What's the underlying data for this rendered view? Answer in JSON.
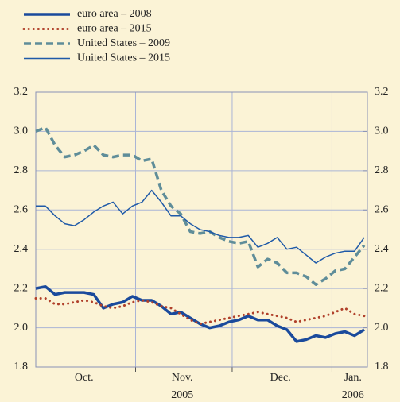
{
  "chart_data": {
    "type": "line",
    "x": [
      0,
      3,
      6,
      9,
      12,
      15,
      18,
      21,
      24,
      27,
      30,
      33,
      36,
      39,
      42,
      45,
      48,
      51,
      54,
      57,
      60,
      63,
      66,
      69,
      72,
      75,
      78,
      81,
      84,
      87,
      90,
      93,
      96,
      99,
      102
    ],
    "xlim": [
      0,
      103
    ],
    "xticks": [
      {
        "value": 15,
        "label": "Oct."
      },
      {
        "value": 45.5,
        "label": "Nov."
      },
      {
        "value": 76,
        "label": "Dec."
      },
      {
        "value": 98.5,
        "label": "Jan."
      }
    ],
    "year_labels": [
      {
        "value": 45.5,
        "label": "2005"
      },
      {
        "value": 98.5,
        "label": "2006"
      }
    ],
    "xgrid": [
      31,
      61,
      92
    ],
    "ylim": [
      1.8,
      3.2
    ],
    "yticks": [
      1.8,
      {
        "value": 2.0,
        "label": "2.0"
      },
      2.2,
      2.4,
      2.6,
      2.8,
      {
        "value": 3.0,
        "label": "3.0"
      },
      3.2
    ],
    "y2lim": [
      1.8,
      3.2
    ],
    "y2ticks": [
      1.8,
      {
        "value": 2.0,
        "label": "2.0"
      },
      2.2,
      2.4,
      2.6,
      2.8,
      {
        "value": 3.0,
        "label": "3.0"
      },
      3.2
    ],
    "grid": true,
    "legend": "top left",
    "series": [
      {
        "name": "euro area – 2008",
        "color": "#1a4a9c",
        "dash": "solid",
        "width": 3.5,
        "values": [
          2.2,
          2.21,
          2.17,
          2.18,
          2.18,
          2.18,
          2.17,
          2.1,
          2.12,
          2.13,
          2.16,
          2.14,
          2.14,
          2.11,
          2.07,
          2.08,
          2.05,
          2.02,
          2.0,
          2.01,
          2.03,
          2.04,
          2.06,
          2.04,
          2.04,
          2.01,
          1.99,
          1.93,
          1.94,
          1.96,
          1.95,
          1.97,
          1.98,
          1.96,
          1.99
        ]
      },
      {
        "name": "euro area – 2015",
        "color": "#b0402a",
        "dash": "dotted",
        "width": 3,
        "values": [
          2.15,
          2.15,
          2.12,
          2.12,
          2.13,
          2.14,
          2.13,
          2.11,
          2.1,
          2.11,
          2.13,
          2.14,
          2.13,
          2.11,
          2.1,
          2.07,
          2.04,
          2.02,
          2.03,
          2.04,
          2.05,
          2.06,
          2.07,
          2.08,
          2.07,
          2.06,
          2.05,
          2.03,
          2.04,
          2.05,
          2.06,
          2.08,
          2.1,
          2.07,
          2.06
        ]
      },
      {
        "name": "United States – 2009",
        "color": "#5f8d99",
        "dash": "dashed",
        "width": 3.5,
        "values": [
          3.0,
          3.02,
          2.93,
          2.87,
          2.88,
          2.9,
          2.93,
          2.88,
          2.87,
          2.88,
          2.88,
          2.85,
          2.86,
          2.7,
          2.62,
          2.58,
          2.49,
          2.48,
          2.49,
          2.46,
          2.44,
          2.43,
          2.44,
          2.31,
          2.35,
          2.33,
          2.28,
          2.28,
          2.26,
          2.22,
          2.25,
          2.29,
          2.3,
          2.36,
          2.42
        ]
      },
      {
        "name": "United States – 2015",
        "color": "#1f5aa8",
        "dash": "solid",
        "width": 1.5,
        "values": [
          2.62,
          2.62,
          2.57,
          2.53,
          2.52,
          2.55,
          2.59,
          2.62,
          2.64,
          2.58,
          2.62,
          2.64,
          2.7,
          2.64,
          2.57,
          2.57,
          2.53,
          2.5,
          2.49,
          2.47,
          2.46,
          2.46,
          2.47,
          2.41,
          2.43,
          2.46,
          2.4,
          2.41,
          2.37,
          2.33,
          2.36,
          2.38,
          2.39,
          2.39,
          2.46
        ]
      }
    ]
  }
}
